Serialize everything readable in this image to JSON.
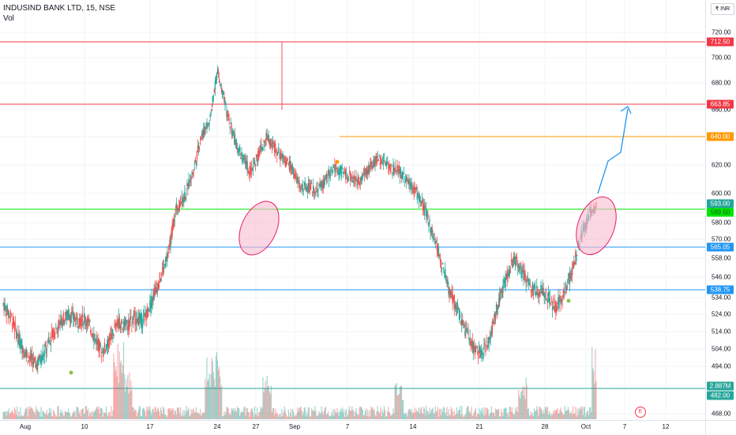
{
  "symbol": {
    "title": "INDUSIND BANK LTD, 15, NSE",
    "volume_label": "Vol"
  },
  "currency_button": "₹ INR",
  "earnings_marker": "E",
  "price_axis": {
    "min": 468,
    "max": 728,
    "ticks": [
      "720.00",
      "700.00",
      "680.00",
      "660.00",
      "640.00",
      "620.00",
      "600.00",
      "580.00",
      "570.00",
      "558.00",
      "546.00",
      "534.00",
      "524.00",
      "514.00",
      "504.00",
      "494.00",
      "468.00"
    ]
  },
  "price_tags": [
    {
      "label": "712.50",
      "color": "#f23645"
    },
    {
      "label": "663.85",
      "color": "#f23645"
    },
    {
      "label": "640.00",
      "color": "#ff9800"
    },
    {
      "label": "593.00",
      "color": "#26a69a"
    },
    {
      "label": "589.50",
      "color": "#00e600"
    },
    {
      "label": "565.05",
      "color": "#2196f3"
    },
    {
      "label": "538.75",
      "color": "#2196f3"
    },
    {
      "label": "2.887M",
      "color": "#26a69a"
    },
    {
      "label": "482.00",
      "color": "#26a69a"
    }
  ],
  "time_axis": {
    "labels": [
      "Aug",
      "10",
      "17",
      "24",
      "27",
      "Sep",
      "7",
      "14",
      "21",
      "28",
      "Oct",
      "7",
      "12"
    ]
  },
  "horizontal_lines": [
    {
      "price": 712.5,
      "color": "#f23645"
    },
    {
      "price": 663.85,
      "color": "#f23645"
    },
    {
      "price": 640.0,
      "color": "#ff9800"
    },
    {
      "price": 589.5,
      "color": "#00e600"
    },
    {
      "price": 565.05,
      "color": "#2196f3"
    },
    {
      "price": 538.75,
      "color": "#2196f3"
    },
    {
      "price": 482.0,
      "color": "#26a69a"
    }
  ],
  "colors": {
    "up": "#26a69a",
    "down": "#ef5350",
    "highlight_fill": "#f8bbd0",
    "highlight_stroke": "#e91e63",
    "projection": "#2196f3"
  },
  "chart_data": {
    "type": "candlestick",
    "title": "INDUSIND BANK LTD, 15, NSE",
    "interval": "15",
    "exchange": "NSE",
    "x_labels": [
      "Aug",
      "10",
      "17",
      "24",
      "27",
      "Sep",
      "7",
      "14",
      "21",
      "28",
      "Oct",
      "7",
      "12"
    ],
    "ylim": [
      468,
      728
    ],
    "key_levels": [
      712.5,
      663.85,
      640.0,
      589.5,
      565.05,
      538.75,
      482.0
    ],
    "last_price": 593.0,
    "last_volume": "2.887M",
    "price_path": [
      [
        0,
        530
      ],
      [
        2,
        522
      ],
      [
        4,
        508
      ],
      [
        6,
        500
      ],
      [
        8,
        495
      ],
      [
        10,
        502
      ],
      [
        12,
        512
      ],
      [
        14,
        520
      ],
      [
        16,
        524
      ],
      [
        18,
        520
      ],
      [
        20,
        522
      ],
      [
        22,
        512
      ],
      [
        24,
        502
      ],
      [
        26,
        510
      ],
      [
        28,
        520
      ],
      [
        30,
        517
      ],
      [
        32,
        522
      ],
      [
        34,
        520
      ],
      [
        36,
        532
      ],
      [
        38,
        545
      ],
      [
        40,
        560
      ],
      [
        42,
        590
      ],
      [
        44,
        598
      ],
      [
        46,
        615
      ],
      [
        48,
        640
      ],
      [
        50,
        650
      ],
      [
        52,
        690
      ],
      [
        54,
        660
      ],
      [
        56,
        640
      ],
      [
        58,
        625
      ],
      [
        60,
        615
      ],
      [
        62,
        628
      ],
      [
        64,
        640
      ],
      [
        66,
        632
      ],
      [
        68,
        624
      ],
      [
        70,
        618
      ],
      [
        72,
        604
      ],
      [
        74,
        605
      ],
      [
        76,
        602
      ],
      [
        78,
        608
      ],
      [
        80,
        618
      ],
      [
        82,
        615
      ],
      [
        84,
        612
      ],
      [
        86,
        608
      ],
      [
        88,
        615
      ],
      [
        90,
        622
      ],
      [
        92,
        625
      ],
      [
        94,
        618
      ],
      [
        96,
        616
      ],
      [
        98,
        610
      ],
      [
        100,
        602
      ],
      [
        102,
        590
      ],
      [
        104,
        575
      ],
      [
        106,
        558
      ],
      [
        108,
        540
      ],
      [
        110,
        528
      ],
      [
        112,
        515
      ],
      [
        114,
        505
      ],
      [
        116,
        500
      ],
      [
        118,
        510
      ],
      [
        120,
        530
      ],
      [
        122,
        545
      ],
      [
        124,
        558
      ],
      [
        126,
        548
      ],
      [
        128,
        540
      ],
      [
        130,
        538
      ],
      [
        132,
        534
      ],
      [
        134,
        528
      ],
      [
        136,
        536
      ],
      [
        138,
        550
      ],
      [
        140,
        570
      ],
      [
        142,
        585
      ],
      [
        144,
        593
      ]
    ],
    "volume_spikes": [
      [
        28,
        1.0
      ],
      [
        30,
        0.7
      ],
      [
        50,
        0.8
      ],
      [
        52,
        0.9
      ],
      [
        64,
        0.6
      ],
      [
        96,
        0.5
      ],
      [
        126,
        0.55
      ],
      [
        144,
        1.0
      ]
    ]
  }
}
